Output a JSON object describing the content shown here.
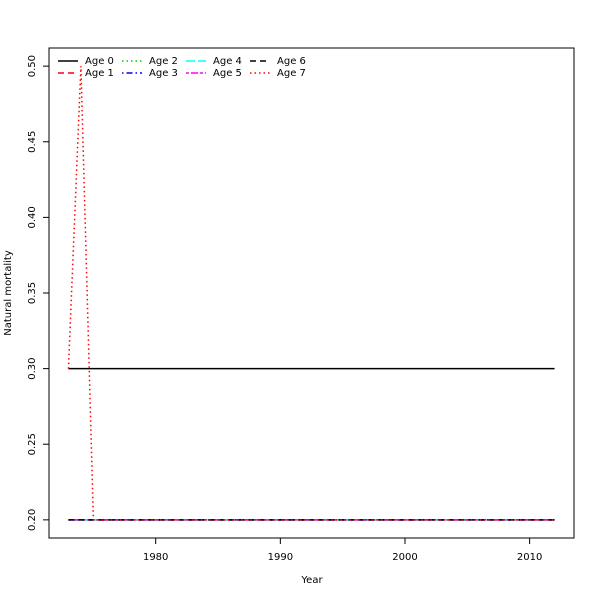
{
  "chart_data": {
    "type": "line",
    "x_label": "Year",
    "y_label": "Natural mortality",
    "x": [
      1973,
      1974,
      1975,
      1976,
      1977,
      1978,
      1979,
      1980,
      1981,
      1982,
      1983,
      1984,
      1985,
      1986,
      1987,
      1988,
      1989,
      1990,
      1991,
      1992,
      1993,
      1994,
      1995,
      1996,
      1997,
      1998,
      1999,
      2000,
      2001,
      2002,
      2003,
      2004,
      2005,
      2006,
      2007,
      2008,
      2009,
      2010,
      2011,
      2012
    ],
    "xlim": [
      1971.44,
      2013.56
    ],
    "xticks": [
      1980,
      1990,
      2000,
      2010
    ],
    "ylim": [
      0.188,
      0.512
    ],
    "yticks": [
      {
        "value": 0.2,
        "label": "0.20"
      },
      0.25,
      {
        "value": 0.3,
        "label": "0.30"
      },
      0.35,
      {
        "value": 0.4,
        "label": "0.40"
      },
      0.45,
      {
        "value": 0.5,
        "label": "0.50"
      }
    ],
    "grid": false,
    "legend_position": "top-left",
    "series": [
      {
        "name": "Age 0",
        "color": "#000000",
        "linestyle": "solid",
        "values": [
          0.3,
          0.3,
          0.3,
          0.3,
          0.3,
          0.3,
          0.3,
          0.3,
          0.3,
          0.3,
          0.3,
          0.3,
          0.3,
          0.3,
          0.3,
          0.3,
          0.3,
          0.3,
          0.3,
          0.3,
          0.3,
          0.3,
          0.3,
          0.3,
          0.3,
          0.3,
          0.3,
          0.3,
          0.3,
          0.3,
          0.3,
          0.3,
          0.3,
          0.3,
          0.3,
          0.3,
          0.3,
          0.3,
          0.3,
          0.3
        ]
      },
      {
        "name": "Age 1",
        "color": "#ff0000",
        "linestyle": "dashed",
        "values": [
          0.2,
          0.2,
          0.2,
          0.2,
          0.2,
          0.2,
          0.2,
          0.2,
          0.2,
          0.2,
          0.2,
          0.2,
          0.2,
          0.2,
          0.2,
          0.2,
          0.2,
          0.2,
          0.2,
          0.2,
          0.2,
          0.2,
          0.2,
          0.2,
          0.2,
          0.2,
          0.2,
          0.2,
          0.2,
          0.2,
          0.2,
          0.2,
          0.2,
          0.2,
          0.2,
          0.2,
          0.2,
          0.2,
          0.2,
          0.2
        ]
      },
      {
        "name": "Age 2",
        "color": "#00cd00",
        "linestyle": "dotted",
        "values": [
          0.2,
          0.2,
          0.2,
          0.2,
          0.2,
          0.2,
          0.2,
          0.2,
          0.2,
          0.2,
          0.2,
          0.2,
          0.2,
          0.2,
          0.2,
          0.2,
          0.2,
          0.2,
          0.2,
          0.2,
          0.2,
          0.2,
          0.2,
          0.2,
          0.2,
          0.2,
          0.2,
          0.2,
          0.2,
          0.2,
          0.2,
          0.2,
          0.2,
          0.2,
          0.2,
          0.2,
          0.2,
          0.2,
          0.2,
          0.2
        ]
      },
      {
        "name": "Age 3",
        "color": "#0000ff",
        "linestyle": "dotdash",
        "values": [
          0.2,
          0.2,
          0.2,
          0.2,
          0.2,
          0.2,
          0.2,
          0.2,
          0.2,
          0.2,
          0.2,
          0.2,
          0.2,
          0.2,
          0.2,
          0.2,
          0.2,
          0.2,
          0.2,
          0.2,
          0.2,
          0.2,
          0.2,
          0.2,
          0.2,
          0.2,
          0.2,
          0.2,
          0.2,
          0.2,
          0.2,
          0.2,
          0.2,
          0.2,
          0.2,
          0.2,
          0.2,
          0.2,
          0.2,
          0.2
        ]
      },
      {
        "name": "Age 4",
        "color": "#00ffff",
        "linestyle": "longdash",
        "values": [
          0.2,
          0.2,
          0.2,
          0.2,
          0.2,
          0.2,
          0.2,
          0.2,
          0.2,
          0.2,
          0.2,
          0.2,
          0.2,
          0.2,
          0.2,
          0.2,
          0.2,
          0.2,
          0.2,
          0.2,
          0.2,
          0.2,
          0.2,
          0.2,
          0.2,
          0.2,
          0.2,
          0.2,
          0.2,
          0.2,
          0.2,
          0.2,
          0.2,
          0.2,
          0.2,
          0.2,
          0.2,
          0.2,
          0.2,
          0.2
        ]
      },
      {
        "name": "Age 5",
        "color": "#ff00ff",
        "linestyle": "twodash",
        "values": [
          0.2,
          0.2,
          0.2,
          0.2,
          0.2,
          0.2,
          0.2,
          0.2,
          0.2,
          0.2,
          0.2,
          0.2,
          0.2,
          0.2,
          0.2,
          0.2,
          0.2,
          0.2,
          0.2,
          0.2,
          0.2,
          0.2,
          0.2,
          0.2,
          0.2,
          0.2,
          0.2,
          0.2,
          0.2,
          0.2,
          0.2,
          0.2,
          0.2,
          0.2,
          0.2,
          0.2,
          0.2,
          0.2,
          0.2,
          0.2
        ]
      },
      {
        "name": "Age 6",
        "color": "#000000",
        "linestyle": "dashed",
        "values": [
          0.2,
          0.2,
          0.2,
          0.2,
          0.2,
          0.2,
          0.2,
          0.2,
          0.2,
          0.2,
          0.2,
          0.2,
          0.2,
          0.2,
          0.2,
          0.2,
          0.2,
          0.2,
          0.2,
          0.2,
          0.2,
          0.2,
          0.2,
          0.2,
          0.2,
          0.2,
          0.2,
          0.2,
          0.2,
          0.2,
          0.2,
          0.2,
          0.2,
          0.2,
          0.2,
          0.2,
          0.2,
          0.2,
          0.2,
          0.2
        ]
      },
      {
        "name": "Age 7",
        "color": "#ff0000",
        "linestyle": "dotted",
        "values": [
          0.3,
          0.5,
          0.2,
          0.2,
          0.2,
          0.2,
          0.2,
          0.2,
          0.2,
          0.2,
          0.2,
          0.2,
          0.2,
          0.2,
          0.2,
          0.2,
          0.2,
          0.2,
          0.2,
          0.2,
          0.2,
          0.2,
          0.2,
          0.2,
          0.2,
          0.2,
          0.2,
          0.2,
          0.2,
          0.2,
          0.2,
          0.2,
          0.2,
          0.2,
          0.2,
          0.2,
          0.2,
          0.2,
          0.2,
          0.2
        ]
      }
    ]
  }
}
